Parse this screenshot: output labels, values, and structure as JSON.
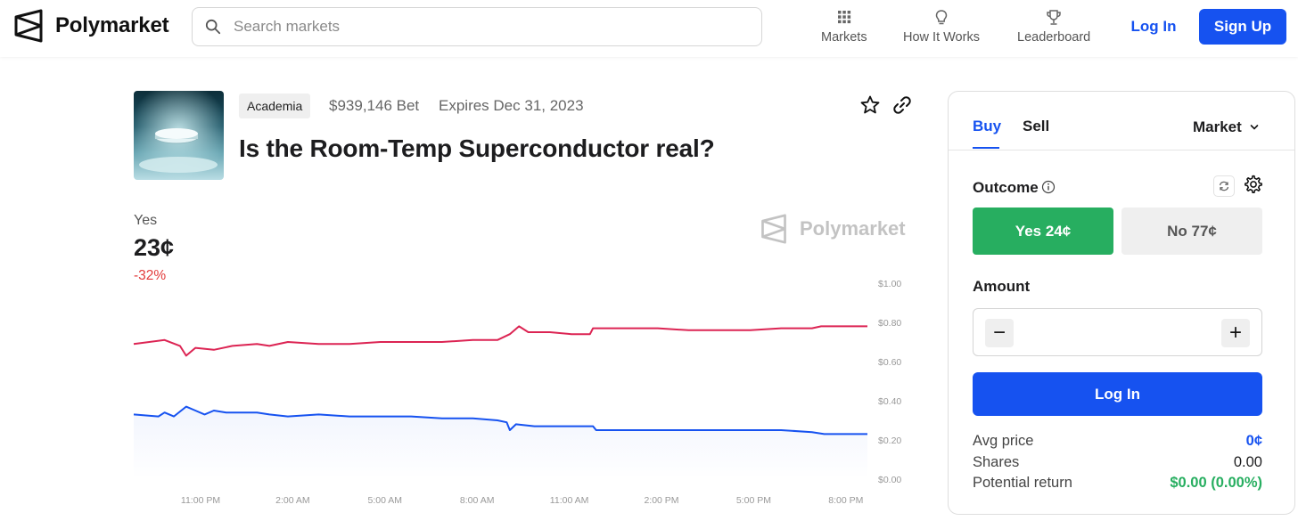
{
  "header": {
    "brand": "Polymarket",
    "search_placeholder": "Search markets",
    "nav": [
      {
        "label": "Markets",
        "icon": "grid-icon"
      },
      {
        "label": "How It Works",
        "icon": "lightbulb-icon"
      },
      {
        "label": "Leaderboard",
        "icon": "trophy-icon"
      }
    ],
    "login_label": "Log In",
    "signup_label": "Sign Up"
  },
  "market": {
    "category": "Academia",
    "volume": "$939,146 Bet",
    "expires": "Expires Dec 31, 2023",
    "title": "Is the Room-Temp Superconductor real?",
    "outcome_label": "Yes",
    "price": "23¢",
    "change": "-32%",
    "watermark": "Polymarket"
  },
  "chart_data": {
    "type": "line",
    "x_tick_labels": [
      "11:00 PM",
      "2:00 AM",
      "5:00 AM",
      "8:00 AM",
      "11:00 AM",
      "2:00 PM",
      "5:00 PM",
      "8:00 PM"
    ],
    "y_tick_labels": [
      "$1.00",
      "$0.80",
      "$0.60",
      "$0.40",
      "$0.20",
      "$0.00"
    ],
    "ylim": [
      0,
      1
    ],
    "grid": false,
    "series": [
      {
        "color": "#dc2453",
        "points": [
          [
            0,
            0.69
          ],
          [
            1.0,
            0.71
          ],
          [
            1.5,
            0.68
          ],
          [
            1.7,
            0.63
          ],
          [
            2.0,
            0.67
          ],
          [
            2.6,
            0.66
          ],
          [
            3.2,
            0.68
          ],
          [
            4.0,
            0.69
          ],
          [
            4.4,
            0.68
          ],
          [
            5.0,
            0.7
          ],
          [
            6.0,
            0.69
          ],
          [
            7.0,
            0.69
          ],
          [
            8.0,
            0.7
          ],
          [
            9.0,
            0.7
          ],
          [
            10.0,
            0.7
          ],
          [
            11.0,
            0.71
          ],
          [
            11.8,
            0.71
          ],
          [
            12.2,
            0.74
          ],
          [
            12.5,
            0.78
          ],
          [
            12.8,
            0.75
          ],
          [
            13.5,
            0.75
          ],
          [
            14.2,
            0.74
          ],
          [
            14.8,
            0.74
          ],
          [
            14.9,
            0.77
          ],
          [
            16.0,
            0.77
          ],
          [
            17.0,
            0.77
          ],
          [
            18.0,
            0.76
          ],
          [
            19.0,
            0.76
          ],
          [
            20.0,
            0.76
          ],
          [
            21.0,
            0.77
          ],
          [
            22.0,
            0.77
          ],
          [
            22.3,
            0.78
          ],
          [
            23.0,
            0.78
          ],
          [
            23.8,
            0.78
          ]
        ]
      },
      {
        "color": "#1652f0",
        "points": [
          [
            0,
            0.33
          ],
          [
            0.8,
            0.32
          ],
          [
            1.0,
            0.34
          ],
          [
            1.3,
            0.32
          ],
          [
            1.7,
            0.37
          ],
          [
            2.0,
            0.35
          ],
          [
            2.3,
            0.33
          ],
          [
            2.6,
            0.35
          ],
          [
            3.0,
            0.34
          ],
          [
            4.0,
            0.34
          ],
          [
            4.4,
            0.33
          ],
          [
            5.0,
            0.32
          ],
          [
            6.0,
            0.33
          ],
          [
            7.0,
            0.32
          ],
          [
            8.0,
            0.32
          ],
          [
            9.0,
            0.32
          ],
          [
            10.0,
            0.31
          ],
          [
            11.0,
            0.31
          ],
          [
            11.8,
            0.3
          ],
          [
            12.1,
            0.29
          ],
          [
            12.2,
            0.25
          ],
          [
            12.4,
            0.28
          ],
          [
            13.0,
            0.27
          ],
          [
            14.0,
            0.27
          ],
          [
            14.9,
            0.27
          ],
          [
            15.0,
            0.25
          ],
          [
            16.0,
            0.25
          ],
          [
            17.0,
            0.25
          ],
          [
            18.0,
            0.25
          ],
          [
            19.0,
            0.25
          ],
          [
            20.0,
            0.25
          ],
          [
            21.0,
            0.25
          ],
          [
            22.0,
            0.24
          ],
          [
            22.4,
            0.23
          ],
          [
            23.0,
            0.23
          ],
          [
            23.8,
            0.23
          ]
        ]
      }
    ]
  },
  "trade": {
    "tab_buy": "Buy",
    "tab_sell": "Sell",
    "order_type": "Market",
    "outcome_heading": "Outcome",
    "outcome_yes": "Yes 24¢",
    "outcome_no": "No 77¢",
    "amount_heading": "Amount",
    "minus": "−",
    "plus": "+",
    "login_button": "Log In",
    "stats": {
      "avg_price_label": "Avg price",
      "avg_price_value": "0¢",
      "shares_label": "Shares",
      "shares_value": "0.00",
      "potential_return_label": "Potential return",
      "potential_return_value": "$0.00 (0.00%)"
    }
  }
}
